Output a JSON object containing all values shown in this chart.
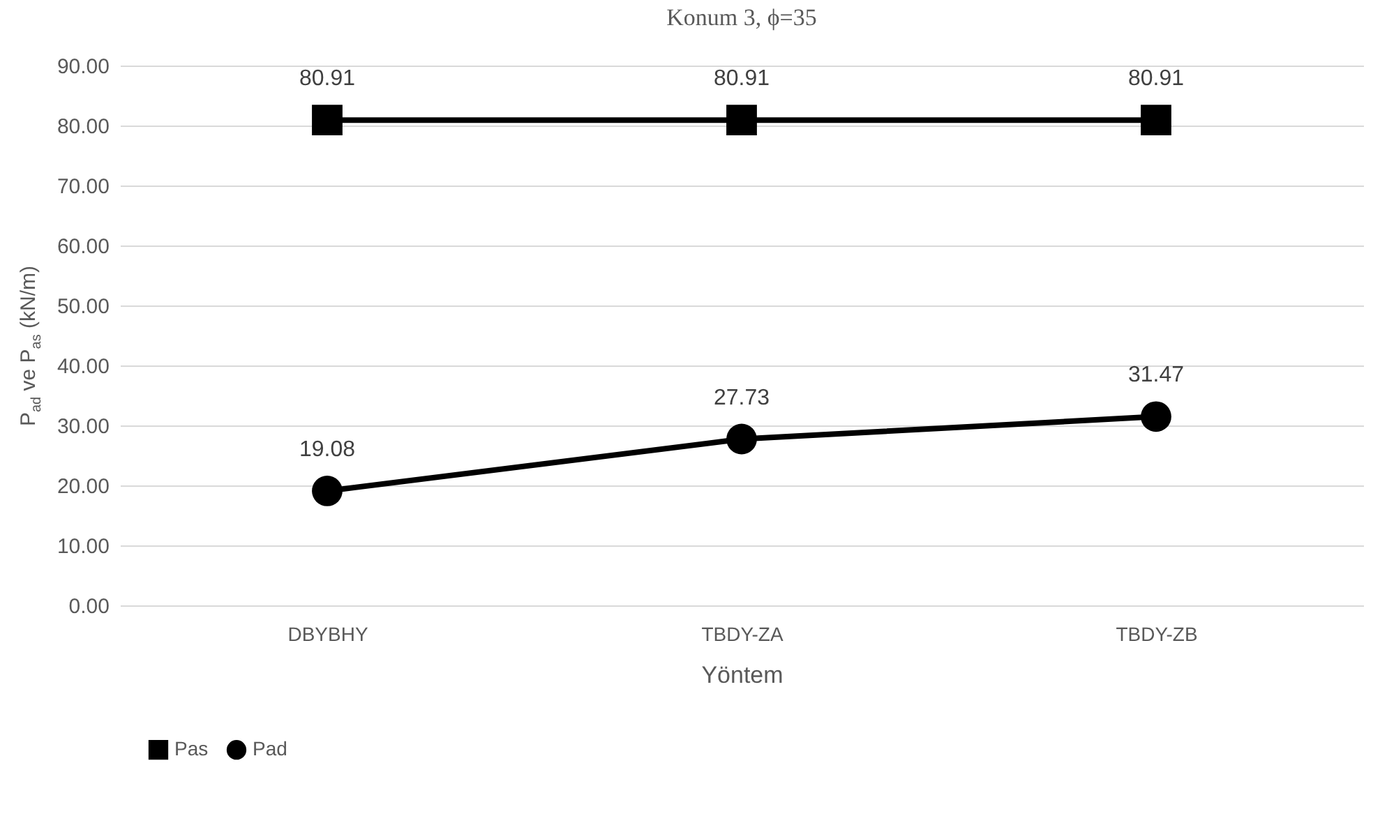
{
  "chart_data": {
    "type": "line",
    "title": "Konum 3, ϕ=35",
    "xlabel": "Yöntem",
    "ylabel": "P$_{ad}$ ve P$_{as}$ (kN/m)",
    "categories": [
      "DBYBHY",
      "TBDY-ZA",
      "TBDY-ZB"
    ],
    "series": [
      {
        "name": "Pas",
        "color": "#000000",
        "marker": "square",
        "values": [
          80.91,
          80.91,
          80.91
        ]
      },
      {
        "name": "Pad",
        "color": "#000000",
        "marker": "circle",
        "values": [
          19.08,
          27.73,
          31.47
        ]
      }
    ],
    "ylim": [
      0,
      90
    ],
    "yticks": [
      {
        "value": 0,
        "label": "0.00"
      },
      {
        "value": 10,
        "label": "10.00"
      },
      {
        "value": 20,
        "label": "20.00"
      },
      {
        "value": 30,
        "label": "30.00"
      },
      {
        "value": 40,
        "label": "40.00"
      },
      {
        "value": 50,
        "label": "50.00"
      },
      {
        "value": 60,
        "label": "60.00"
      },
      {
        "value": 70,
        "label": "70.00"
      },
      {
        "value": 80,
        "label": "80.00"
      },
      {
        "value": 90,
        "label": "90.00"
      }
    ],
    "grid": "y",
    "legend": "bottom",
    "data_labels": true,
    "line_style": "solid"
  }
}
